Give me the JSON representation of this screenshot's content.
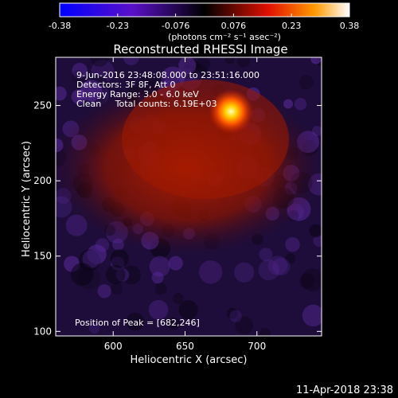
{
  "chart_data": {
    "type": "heatmap",
    "title": "Reconstructed RHESSI Image",
    "colorbar": {
      "ticks": [
        "-0.38",
        "-0.23",
        "-0.076",
        "0.076",
        "0.23",
        "0.38"
      ],
      "unit_label": "(photons cm⁻² s⁻¹ asec⁻²)",
      "range": [
        -0.38,
        0.38
      ],
      "colormap": "blue-purple-black-red-yellow-white"
    },
    "xlabel": "Heliocentric X (arcsec)",
    "ylabel": "Heliocentric Y (arcsec)",
    "xlim": [
      560,
      745
    ],
    "ylim": [
      97,
      282
    ],
    "x_ticks": [
      "600",
      "650",
      "700"
    ],
    "y_ticks": [
      "100",
      "150",
      "200",
      "250"
    ],
    "info_lines": [
      "9-Jun-2016 23:48:08.000 to 23:51:16.000",
      "Detectors: 3F 8F, Att 0",
      "Energy Range: 3.0 - 6.0 keV",
      "Clean     Total counts: 6.19E+03"
    ],
    "peak_label": "Position of Peak = [682,246]",
    "peak": {
      "x": 682,
      "y": 246
    },
    "timestamp": "11-Apr-2018 23:38"
  },
  "colors": {
    "background": "#000000",
    "negative": "#2a1466",
    "positive": "#c41a00",
    "peak": "#ffff80"
  }
}
